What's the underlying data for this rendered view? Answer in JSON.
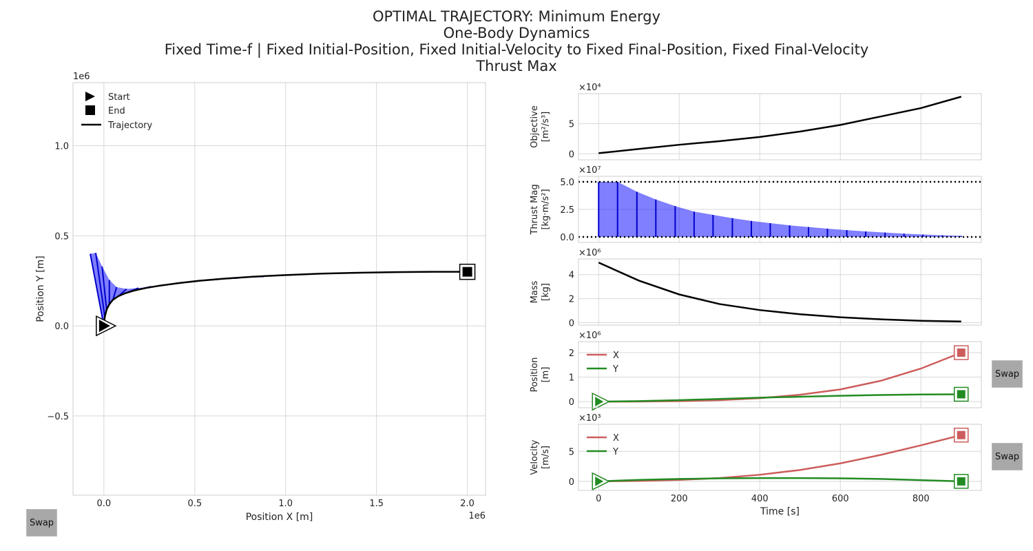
{
  "title": {
    "line1": "OPTIMAL TRAJECTORY: Minimum Energy",
    "line2": "One-Body Dynamics",
    "line3": "Fixed Time-f | Fixed Initial-Position, Fixed Initial-Velocity to Fixed Final-Position, Fixed Final-Velocity",
    "line4": "Thrust Max"
  },
  "buttons": {
    "swap_label": "Swap"
  },
  "colors": {
    "x_series": "#cd5c5c",
    "y_series": "#228b22",
    "thrust": "#0000ff",
    "trajectory": "#000000"
  },
  "chart_data": [
    {
      "id": "trajectory",
      "type": "line",
      "xlabel": "Position X [m]",
      "ylabel": "Position Y [m]",
      "xexp": "1e6",
      "yexp": "1e6",
      "xlim": [
        -0.17,
        2.1
      ],
      "ylim": [
        -0.94,
        1.35
      ],
      "xticks": [
        0.0,
        0.5,
        1.0,
        1.5,
        2.0
      ],
      "xtick_labels": [
        "0.0",
        "0.5",
        "1.0",
        "1.5",
        "2.0"
      ],
      "yticks": [
        -0.5,
        0.0,
        0.5,
        1.0
      ],
      "ytick_labels": [
        "−0.5",
        "0.0",
        "0.5",
        "1.0"
      ],
      "grid": true,
      "legend": {
        "placement": "top-left",
        "entries": [
          "Start",
          "End",
          "Trajectory"
        ]
      },
      "start": [
        0.0,
        0.0
      ],
      "end": [
        2.0,
        0.3
      ],
      "x": [
        0.0,
        0.005,
        0.015,
        0.03,
        0.05,
        0.08,
        0.12,
        0.17,
        0.23,
        0.3,
        0.4,
        0.52,
        0.66,
        0.82,
        1.0,
        1.2,
        1.4,
        1.6,
        1.8,
        2.0
      ],
      "y": [
        0.0,
        0.05,
        0.09,
        0.12,
        0.145,
        0.165,
        0.182,
        0.197,
        0.21,
        0.222,
        0.236,
        0.25,
        0.262,
        0.273,
        0.282,
        0.29,
        0.295,
        0.298,
        0.3,
        0.3
      ],
      "thrust_vector_tips_x": [
        -0.075,
        -0.045,
        -0.01,
        0.03,
        0.07,
        0.125,
        0.19,
        0.26,
        0.335,
        0.42,
        0.515,
        0.625,
        0.745,
        0.88,
        1.03,
        1.19,
        1.36,
        1.55,
        1.76,
        2.0
      ],
      "thrust_vector_tips_y": [
        0.4,
        0.405,
        0.33,
        0.255,
        0.215,
        0.205,
        0.21,
        0.218,
        0.228,
        0.238,
        0.248,
        0.258,
        0.266,
        0.274,
        0.282,
        0.289,
        0.294,
        0.298,
        0.3,
        0.3
      ]
    },
    {
      "id": "objective",
      "type": "line",
      "ylabel_line1": "Objective",
      "ylabel_line2": "[m²/s³]",
      "yexp": "×10⁴",
      "ylim": [
        -1,
        10
      ],
      "yticks": [
        0,
        5
      ],
      "ytick_labels": [
        "0",
        "5"
      ],
      "x": [
        0,
        100,
        200,
        300,
        400,
        500,
        600,
        700,
        800,
        900
      ],
      "y": [
        0.1,
        0.8,
        1.5,
        2.1,
        2.8,
        3.7,
        4.8,
        6.2,
        7.6,
        9.5
      ]
    },
    {
      "id": "thrust",
      "type": "area",
      "ylabel_line1": "Thrust Mag",
      "ylabel_line2": "[kg·m/s²]",
      "yexp": "×10⁷",
      "ylim": [
        -0.5,
        5.5
      ],
      "yticks": [
        0.0,
        2.5,
        5.0
      ],
      "ytick_labels": [
        "0.0",
        "2.5",
        "5.0"
      ],
      "limits": [
        0.0,
        5.0
      ],
      "x": [
        0,
        47,
        95,
        142,
        190,
        237,
        284,
        332,
        379,
        426,
        474,
        521,
        568,
        616,
        663,
        711,
        758,
        805,
        853,
        900
      ],
      "y": [
        5.0,
        5.0,
        4.1,
        3.4,
        2.8,
        2.3,
        2.0,
        1.7,
        1.45,
        1.25,
        1.05,
        0.9,
        0.75,
        0.62,
        0.5,
        0.4,
        0.3,
        0.22,
        0.15,
        0.1
      ]
    },
    {
      "id": "mass",
      "type": "line",
      "ylabel_line1": "Mass",
      "ylabel_line2": "[kg]",
      "yexp": "×10⁶",
      "ylim": [
        -0.2,
        5.3
      ],
      "yticks": [
        0,
        2,
        4
      ],
      "ytick_labels": [
        "0",
        "2",
        "4"
      ],
      "x": [
        0,
        100,
        200,
        300,
        400,
        500,
        600,
        700,
        800,
        900
      ],
      "y": [
        5.0,
        3.5,
        2.35,
        1.55,
        1.05,
        0.7,
        0.45,
        0.28,
        0.16,
        0.1
      ]
    },
    {
      "id": "position",
      "type": "line",
      "ylabel_line1": "Position",
      "ylabel_line2": "[m]",
      "yexp": "×10⁶",
      "ylim": [
        -0.25,
        2.45
      ],
      "yticks": [
        0,
        1,
        2
      ],
      "ytick_labels": [
        "0",
        "1",
        "2"
      ],
      "legend": {
        "placement": "top-left",
        "entries": [
          "X",
          "Y"
        ]
      },
      "x": [
        0,
        100,
        200,
        300,
        400,
        500,
        600,
        700,
        800,
        900
      ],
      "series": [
        {
          "name": "X",
          "values": [
            0.0,
            0.003,
            0.02,
            0.06,
            0.14,
            0.28,
            0.5,
            0.85,
            1.35,
            2.0
          ]
        },
        {
          "name": "Y",
          "values": [
            0.0,
            0.02,
            0.06,
            0.11,
            0.16,
            0.2,
            0.24,
            0.27,
            0.29,
            0.3
          ]
        }
      ]
    },
    {
      "id": "velocity",
      "type": "line",
      "ylabel_line1": "Velocity",
      "ylabel_line2": "[m/s]",
      "yexp": "×10³",
      "xlabel": "Time [s]",
      "xlim": [
        -50,
        950
      ],
      "xticks": [
        0,
        200,
        400,
        600,
        800
      ],
      "xtick_labels": [
        "0",
        "200",
        "400",
        "600",
        "800"
      ],
      "ylim": [
        -1.5,
        9.5
      ],
      "yticks": [
        0,
        5
      ],
      "ytick_labels": [
        "0",
        "5"
      ],
      "legend": {
        "placement": "top-left",
        "entries": [
          "X",
          "Y"
        ]
      },
      "x": [
        0,
        100,
        200,
        300,
        400,
        500,
        600,
        700,
        800,
        900
      ],
      "series": [
        {
          "name": "X",
          "values": [
            0.0,
            0.08,
            0.25,
            0.55,
            1.1,
            1.9,
            3.0,
            4.4,
            6.0,
            7.7
          ]
        },
        {
          "name": "Y",
          "values": [
            0.0,
            0.25,
            0.4,
            0.5,
            0.55,
            0.55,
            0.5,
            0.4,
            0.2,
            0.0
          ]
        }
      ]
    }
  ]
}
